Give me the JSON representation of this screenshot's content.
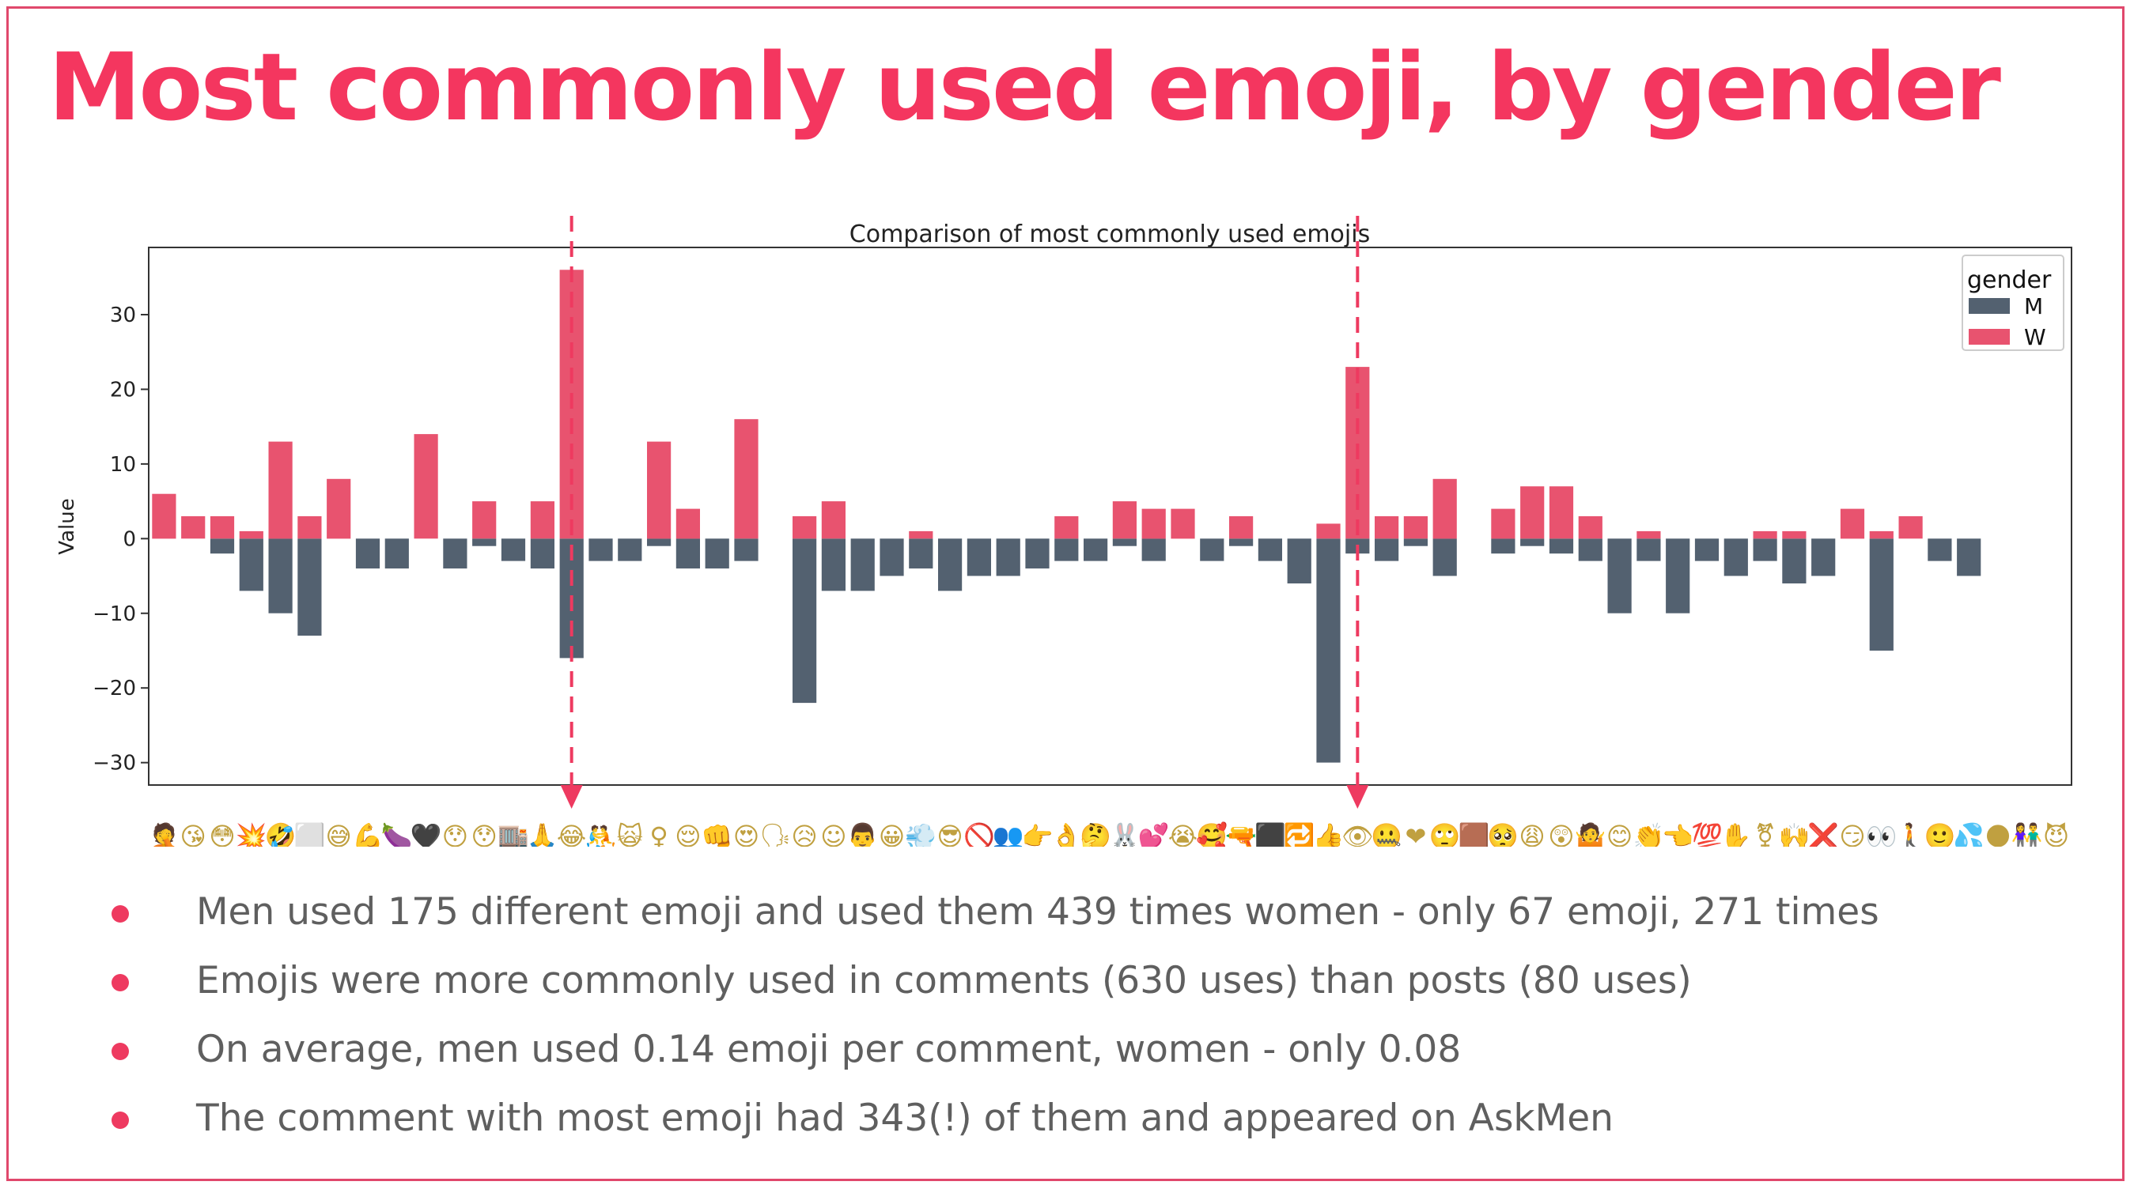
{
  "slide": {
    "title": "Most commonly used emoji, by gender",
    "bullets": [
      "Men used 175 different emoji and used them 439 times women - only 67 emoji, 271 times",
      "Emojis were more commonly used in comments (630 uses) than posts (80 uses)",
      "On average, men used 0.14 emoji per comment, women - only 0.08",
      "The comment with most emoji had 343(!) of them and appeared on AskMen"
    ],
    "accent_color": "#f4365f"
  },
  "chart_data": {
    "type": "bar",
    "title": "Comparison of most commonly used emojis",
    "xlabel": "",
    "ylabel": "Value",
    "ylim": [
      -33,
      39
    ],
    "yticks": [
      -30,
      -20,
      -10,
      0,
      10,
      20,
      30
    ],
    "grid": false,
    "legend": {
      "title": "gender",
      "placement": "top-right"
    },
    "categories": [
      "🤦",
      "😘",
      "😳",
      "💥",
      "🤣",
      "⬜",
      "😅",
      "💪",
      "🍆",
      "🖤",
      "😯",
      "😯",
      "🏬",
      "🙏",
      "😂",
      "🤼",
      "🙀",
      "♀",
      "😌",
      "👊",
      "😍",
      "🗣",
      "😥",
      "☺",
      "👨",
      "😀",
      "💨",
      "😎",
      "🚫",
      "👥",
      "👉",
      "👌",
      "🤔",
      "🐰",
      "💕",
      "😭",
      "🥰",
      "🔫",
      "⬛",
      "🔁",
      "👍",
      "👁",
      "🤐",
      "❤",
      "🙄",
      "🟫",
      "🥺",
      "😩",
      "😲",
      "🤷",
      "😊",
      "👏",
      "👈",
      "💯",
      "✋",
      "⚧",
      "🙌",
      "❌",
      "😏",
      "👀",
      "🚶",
      "🙂",
      "💦",
      "🌑",
      "👫",
      "😈"
    ],
    "series": [
      {
        "name": "M",
        "color": "#536170",
        "values": [
          0,
          0,
          -2,
          -7,
          -10,
          -13,
          0,
          -4,
          -4,
          0,
          -4,
          -1,
          -3,
          -4,
          -16,
          -3,
          -3,
          -1,
          -4,
          -4,
          -3,
          0,
          -22,
          -7,
          -7,
          -5,
          -4,
          -7,
          -5,
          -5,
          -4,
          -3,
          -3,
          -1,
          -3,
          0,
          -3,
          -1,
          -3,
          -6,
          -30,
          -2,
          -3,
          -1,
          -5,
          0,
          -2,
          -1,
          -2,
          -3,
          -10,
          -3,
          -10,
          -3,
          -5,
          -3,
          -6,
          -5,
          0,
          -15,
          0,
          -3,
          -5,
          0,
          0,
          0
        ]
      },
      {
        "name": "W",
        "color": "#e8536f",
        "values": [
          6,
          3,
          3,
          1,
          13,
          3,
          8,
          0,
          0,
          14,
          0,
          5,
          0,
          5,
          36,
          0,
          0,
          13,
          4,
          0,
          16,
          0,
          3,
          5,
          0,
          0,
          1,
          0,
          0,
          0,
          0,
          3,
          0,
          5,
          4,
          4,
          0,
          3,
          0,
          0,
          2,
          23,
          3,
          3,
          8,
          0,
          4,
          7,
          7,
          3,
          0,
          1,
          0,
          0,
          0,
          1,
          1,
          0,
          4,
          1,
          3,
          0,
          0,
          0,
          0,
          0
        ]
      }
    ],
    "highlighted_categories": [
      "😂",
      "👁"
    ]
  }
}
